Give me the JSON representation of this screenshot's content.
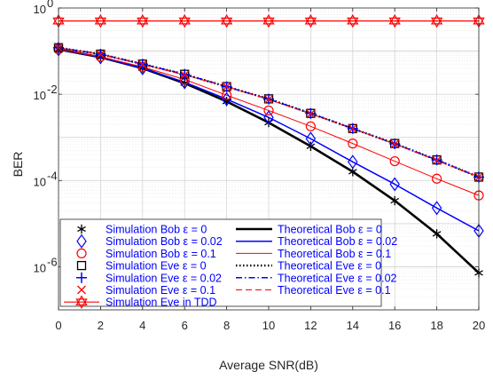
{
  "chart_data": {
    "type": "line",
    "xlabel": "Average SNR(dB)",
    "ylabel": "BER",
    "x": [
      0,
      2,
      4,
      6,
      8,
      10,
      12,
      14,
      16,
      18,
      20
    ],
    "xlim": [
      0,
      20
    ],
    "ylim": [
      1e-07,
      1
    ],
    "yscale": "log",
    "xticks": [
      "0",
      "2",
      "4",
      "6",
      "8",
      "10",
      "12",
      "14",
      "16",
      "18",
      "20"
    ],
    "yticks": [
      {
        "base": "10",
        "exp": "0"
      },
      {
        "base": "10",
        "exp": "-2"
      },
      {
        "base": "10",
        "exp": "-4"
      },
      {
        "base": "10",
        "exp": "-6"
      }
    ],
    "grid": true,
    "legend_position": "bottom-left",
    "series": [
      {
        "name": "Simulation Bob ε = 0",
        "color": "#000000",
        "marker": "asterisk",
        "values": [
          0.11,
          0.072,
          0.04,
          0.018,
          0.0068,
          0.0022,
          0.00062,
          0.00016,
          3.4e-05,
          5.8e-06,
          7.2e-07
        ]
      },
      {
        "name": "Simulation Bob ε = 0.02",
        "color": "#0000ff",
        "marker": "diamond",
        "values": [
          0.11,
          0.072,
          0.04,
          0.019,
          0.0077,
          0.0029,
          0.00093,
          0.00027,
          8.2e-05,
          2.3e-05,
          6.8e-06
        ]
      },
      {
        "name": "Simulation Bob ε = 0.1",
        "color": "#ff0000",
        "marker": "circle",
        "values": [
          0.11,
          0.074,
          0.043,
          0.022,
          0.0095,
          0.0042,
          0.0018,
          0.00072,
          0.00028,
          0.00011,
          4.5e-05
        ]
      },
      {
        "name": "Simulation Eve ε = 0",
        "color": "#000000",
        "marker": "square",
        "values": [
          0.12,
          0.085,
          0.05,
          0.029,
          0.015,
          0.0078,
          0.0036,
          0.0016,
          0.00072,
          0.0003,
          0.00012
        ]
      },
      {
        "name": "Simulation Eve ε = 0.02",
        "color": "#0000ff",
        "marker": "plus",
        "values": [
          0.12,
          0.085,
          0.05,
          0.029,
          0.015,
          0.0077,
          0.0036,
          0.0016,
          0.00071,
          0.0003,
          0.00012
        ]
      },
      {
        "name": "Simulation Eve ε = 0.1",
        "color": "#ff0000",
        "marker": "x",
        "values": [
          0.12,
          0.084,
          0.049,
          0.028,
          0.015,
          0.0076,
          0.0035,
          0.0016,
          0.0007,
          0.00029,
          0.00012
        ]
      },
      {
        "name": "Simulation Eve in TDD",
        "color": "#ff0000",
        "marker": "hexagram",
        "line": "solid",
        "values": [
          0.5,
          0.5,
          0.5,
          0.5,
          0.5,
          0.5,
          0.5,
          0.5,
          0.5,
          0.5,
          0.5
        ]
      },
      {
        "name": "Theoretical Bob ε = 0",
        "color": "#000000",
        "line": "solid",
        "width": 2.6,
        "values": [
          0.11,
          0.072,
          0.04,
          0.018,
          0.0068,
          0.0022,
          0.00062,
          0.00016,
          3.4e-05,
          5.8e-06,
          7.2e-07
        ]
      },
      {
        "name": "Theoretical Bob ε = 0.02",
        "color": "#0000ff",
        "line": "solid",
        "width": 1.5,
        "values": [
          0.11,
          0.072,
          0.04,
          0.019,
          0.0077,
          0.0029,
          0.00093,
          0.00027,
          8.2e-05,
          2.3e-05,
          6.8e-06
        ]
      },
      {
        "name": "Theoretical Bob ε = 0.1",
        "color": "#ff0000",
        "line": "solid",
        "width": 1,
        "values": [
          0.11,
          0.074,
          0.043,
          0.022,
          0.0095,
          0.0042,
          0.0018,
          0.00072,
          0.00028,
          0.00011,
          4.5e-05
        ]
      },
      {
        "name": "Theoretical Eve ε = 0",
        "color": "#000000",
        "line": "dotted",
        "width": 2.4,
        "values": [
          0.12,
          0.085,
          0.05,
          0.029,
          0.015,
          0.0078,
          0.0036,
          0.0016,
          0.00072,
          0.0003,
          0.00012
        ]
      },
      {
        "name": "Theoretical Eve ε = 0.02",
        "color": "#0000ff",
        "line": "dashdot",
        "width": 1.5,
        "values": [
          0.12,
          0.085,
          0.05,
          0.029,
          0.015,
          0.0077,
          0.0036,
          0.0016,
          0.00071,
          0.0003,
          0.00012
        ]
      },
      {
        "name": "Theoretical Eve ε = 0.1",
        "color": "#ff0000",
        "line": "dashed",
        "width": 1,
        "values": [
          0.12,
          0.084,
          0.049,
          0.028,
          0.015,
          0.0076,
          0.0035,
          0.0016,
          0.0007,
          0.00029,
          0.00012
        ]
      }
    ],
    "legend": {
      "left_column": [
        "Simulation Bob ε = 0",
        "Simulation Bob ε = 0.02",
        "Simulation Bob ε = 0.1",
        "Simulation Eve ε = 0",
        "Simulation Eve ε = 0.02",
        "Simulation Eve ε = 0.1",
        "Simulation Eve in TDD"
      ],
      "right_column": [
        "Theoretical Bob ε = 0",
        "Theoretical Bob ε = 0.02",
        "Theoretical Bob ε = 0.1",
        "Theoretical Eve ε = 0",
        "Theoretical Eve ε = 0.02",
        "Theoretical Eve ε = 0.1"
      ]
    }
  }
}
